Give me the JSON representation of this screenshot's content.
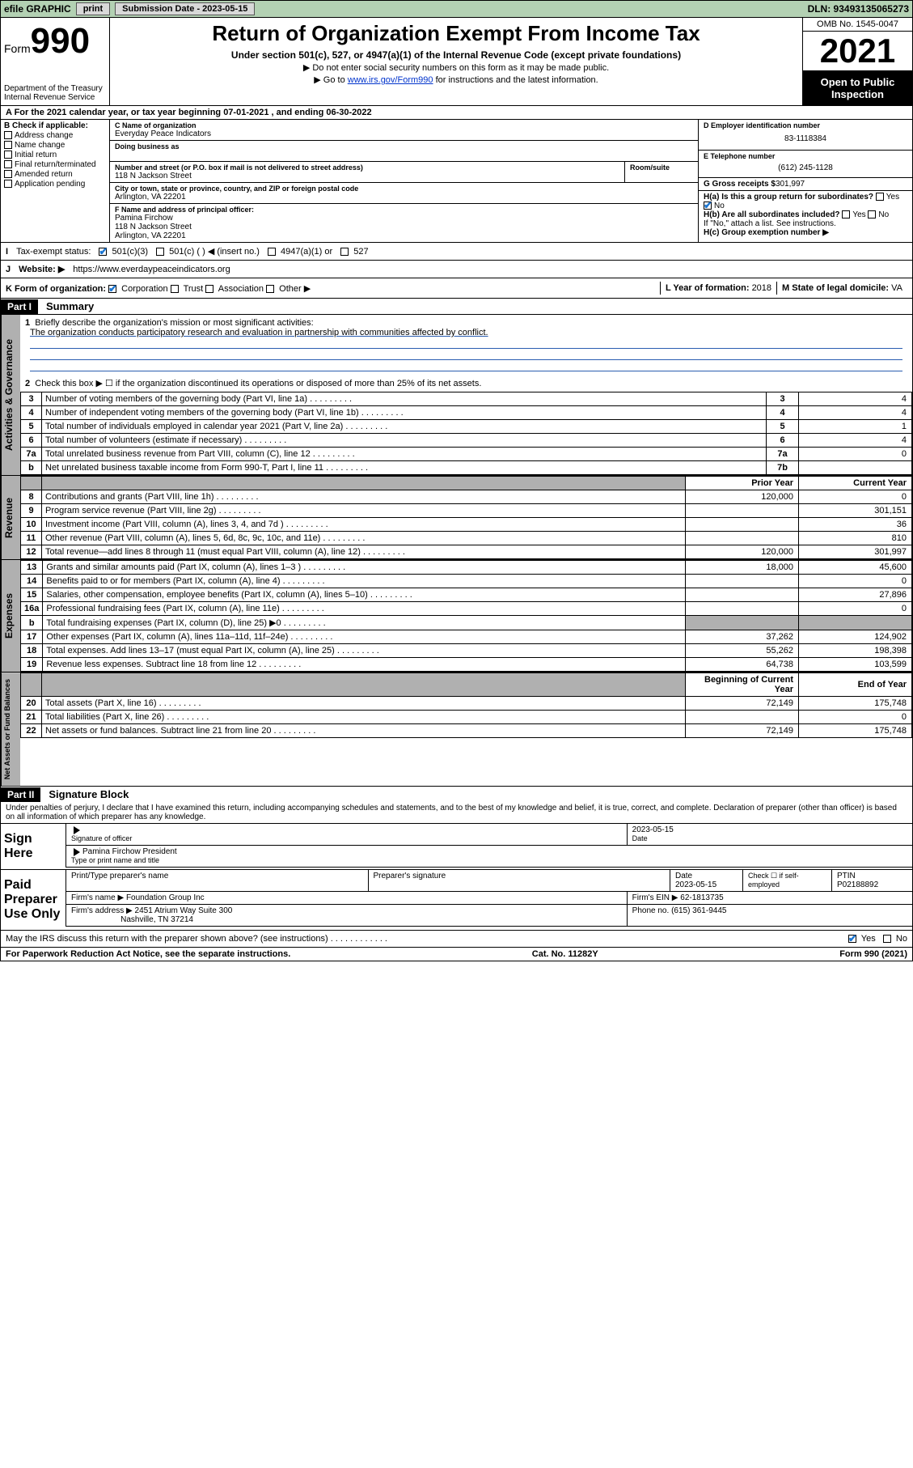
{
  "topbar": {
    "efile": "efile GRAPHIC",
    "print": "print",
    "sub_label": "Submission Date - 2023-05-15",
    "dln": "DLN: 93493135065273"
  },
  "header": {
    "form_small": "Form",
    "form_big": "990",
    "dept": "Department of the Treasury\nInternal Revenue Service",
    "title": "Return of Organization Exempt From Income Tax",
    "subtitle": "Under section 501(c), 527, or 4947(a)(1) of the Internal Revenue Code (except private foundations)",
    "note1": "▶ Do not enter social security numbers on this form as it may be made public.",
    "note2_pre": "▶ Go to ",
    "note2_link": "www.irs.gov/Form990",
    "note2_post": " for instructions and the latest information.",
    "omb": "OMB No. 1545-0047",
    "year": "2021",
    "open": "Open to Public Inspection"
  },
  "row_a": "A For the 2021 calendar year, or tax year beginning 07-01-2021   , and ending 06-30-2022",
  "col_b": {
    "hd": "B Check if applicable:",
    "items": [
      "Address change",
      "Name change",
      "Initial return",
      "Final return/terminated",
      "Amended return",
      "Application pending"
    ]
  },
  "col_c": {
    "name_lbl": "C Name of organization",
    "name": "Everyday Peace Indicators",
    "dba_lbl": "Doing business as",
    "addr_lbl": "Number and street (or P.O. box if mail is not delivered to street address)",
    "room_lbl": "Room/suite",
    "addr": "118 N Jackson Street",
    "city_lbl": "City or town, state or province, country, and ZIP or foreign postal code",
    "city": "Arlington, VA  22201",
    "f_lbl": "F Name and address of principal officer:",
    "f_name": "Pamina Firchow",
    "f_addr1": "118 N Jackson Street",
    "f_addr2": "Arlington, VA  22201"
  },
  "col_def": {
    "d_lbl": "D Employer identification number",
    "d_val": "83-1118384",
    "e_lbl": "E Telephone number",
    "e_val": "(612) 245-1128",
    "g_lbl": "G Gross receipts $",
    "g_val": "301,997",
    "ha_lbl": "H(a)  Is this a group return for subordinates?",
    "hb_lbl": "H(b)  Are all subordinates included?",
    "hb_note": "If \"No,\" attach a list. See instructions.",
    "hc_lbl": "H(c)  Group exemption number ▶"
  },
  "row_i": {
    "lbl": "Tax-exempt status:",
    "opts": [
      "501(c)(3)",
      "501(c) (  ) ◀ (insert no.)",
      "4947(a)(1) or",
      "527"
    ]
  },
  "row_j": {
    "lbl": "Website: ▶",
    "val": "https://www.everdaypeaceindicators.org"
  },
  "row_k": {
    "k_lbl": "K Form of organization:",
    "k_opts": [
      "Corporation",
      "Trust",
      "Association",
      "Other ▶"
    ],
    "l_lbl": "L Year of formation:",
    "l_val": "2018",
    "m_lbl": "M State of legal domicile:",
    "m_val": "VA"
  },
  "part1": {
    "hdr": "Part I",
    "title": "Summary",
    "q1_lbl": "Briefly describe the organization's mission or most significant activities:",
    "q1_val": "The organization conducts participatory research and evaluation in partnership with communities affected by conflict.",
    "q2": "Check this box ▶ ☐  if the organization discontinued its operations or disposed of more than 25% of its net assets.",
    "vtabs": {
      "gov": "Activities & Governance",
      "rev": "Revenue",
      "exp": "Expenses",
      "net": "Net Assets or Fund Balances"
    },
    "gov_rows": [
      {
        "n": "3",
        "d": "Number of voting members of the governing body (Part VI, line 1a)",
        "box": "3",
        "v": "4"
      },
      {
        "n": "4",
        "d": "Number of independent voting members of the governing body (Part VI, line 1b)",
        "box": "4",
        "v": "4"
      },
      {
        "n": "5",
        "d": "Total number of individuals employed in calendar year 2021 (Part V, line 2a)",
        "box": "5",
        "v": "1"
      },
      {
        "n": "6",
        "d": "Total number of volunteers (estimate if necessary)",
        "box": "6",
        "v": "4"
      },
      {
        "n": "7a",
        "d": "Total unrelated business revenue from Part VIII, column (C), line 12",
        "box": "7a",
        "v": "0"
      },
      {
        "n": "b",
        "d": "Net unrelated business taxable income from Form 990-T, Part I, line 11",
        "box": "7b",
        "v": ""
      }
    ],
    "col_hdrs": {
      "prior": "Prior Year",
      "current": "Current Year"
    },
    "rev_rows": [
      {
        "n": "8",
        "d": "Contributions and grants (Part VIII, line 1h)",
        "p": "120,000",
        "c": "0"
      },
      {
        "n": "9",
        "d": "Program service revenue (Part VIII, line 2g)",
        "p": "",
        "c": "301,151"
      },
      {
        "n": "10",
        "d": "Investment income (Part VIII, column (A), lines 3, 4, and 7d )",
        "p": "",
        "c": "36"
      },
      {
        "n": "11",
        "d": "Other revenue (Part VIII, column (A), lines 5, 6d, 8c, 9c, 10c, and 11e)",
        "p": "",
        "c": "810"
      },
      {
        "n": "12",
        "d": "Total revenue—add lines 8 through 11 (must equal Part VIII, column (A), line 12)",
        "p": "120,000",
        "c": "301,997"
      }
    ],
    "exp_rows": [
      {
        "n": "13",
        "d": "Grants and similar amounts paid (Part IX, column (A), lines 1–3 )",
        "p": "18,000",
        "c": "45,600"
      },
      {
        "n": "14",
        "d": "Benefits paid to or for members (Part IX, column (A), line 4)",
        "p": "",
        "c": "0"
      },
      {
        "n": "15",
        "d": "Salaries, other compensation, employee benefits (Part IX, column (A), lines 5–10)",
        "p": "",
        "c": "27,896"
      },
      {
        "n": "16a",
        "d": "Professional fundraising fees (Part IX, column (A), line 11e)",
        "p": "",
        "c": "0"
      },
      {
        "n": "b",
        "d": "Total fundraising expenses (Part IX, column (D), line 25) ▶0",
        "p": "shade",
        "c": "shade"
      },
      {
        "n": "17",
        "d": "Other expenses (Part IX, column (A), lines 11a–11d, 11f–24e)",
        "p": "37,262",
        "c": "124,902"
      },
      {
        "n": "18",
        "d": "Total expenses. Add lines 13–17 (must equal Part IX, column (A), line 25)",
        "p": "55,262",
        "c": "198,398"
      },
      {
        "n": "19",
        "d": "Revenue less expenses. Subtract line 18 from line 12",
        "p": "64,738",
        "c": "103,599"
      }
    ],
    "net_hdrs": {
      "begin": "Beginning of Current Year",
      "end": "End of Year"
    },
    "net_rows": [
      {
        "n": "20",
        "d": "Total assets (Part X, line 16)",
        "p": "72,149",
        "c": "175,748"
      },
      {
        "n": "21",
        "d": "Total liabilities (Part X, line 26)",
        "p": "",
        "c": "0"
      },
      {
        "n": "22",
        "d": "Net assets or fund balances. Subtract line 21 from line 20",
        "p": "72,149",
        "c": "175,748"
      }
    ]
  },
  "part2": {
    "hdr": "Part II",
    "title": "Signature Block",
    "decl": "Under penalties of perjury, I declare that I have examined this return, including accompanying schedules and statements, and to the best of my knowledge and belief, it is true, correct, and complete. Declaration of preparer (other than officer) is based on all information of which preparer has any knowledge.",
    "sign_here": "Sign Here",
    "sig_officer_lbl": "Signature of officer",
    "sig_date": "2023-05-15",
    "date_lbl": "Date",
    "officer_name": "Pamina Firchow  President",
    "officer_name_lbl": "Type or print name and title",
    "paid": "Paid Preparer Use Only",
    "prep_name_lbl": "Print/Type preparer's name",
    "prep_sig_lbl": "Preparer's signature",
    "prep_date_lbl": "Date",
    "prep_date": "2023-05-15",
    "check_lbl": "Check ☐ if self-employed",
    "ptin_lbl": "PTIN",
    "ptin": "P02188892",
    "firm_name_lbl": "Firm's name    ▶",
    "firm_name": "Foundation Group Inc",
    "firm_ein_lbl": "Firm's EIN ▶",
    "firm_ein": "62-1813735",
    "firm_addr_lbl": "Firm's address ▶",
    "firm_addr1": "2451 Atrium Way Suite 300",
    "firm_addr2": "Nashville, TN  37214",
    "phone_lbl": "Phone no.",
    "phone": "(615) 361-9445",
    "discuss": "May the IRS discuss this return with the preparer shown above? (see instructions)"
  },
  "footer": {
    "pra": "For Paperwork Reduction Act Notice, see the separate instructions.",
    "cat": "Cat. No. 11282Y",
    "form": "Form 990 (2021)"
  }
}
